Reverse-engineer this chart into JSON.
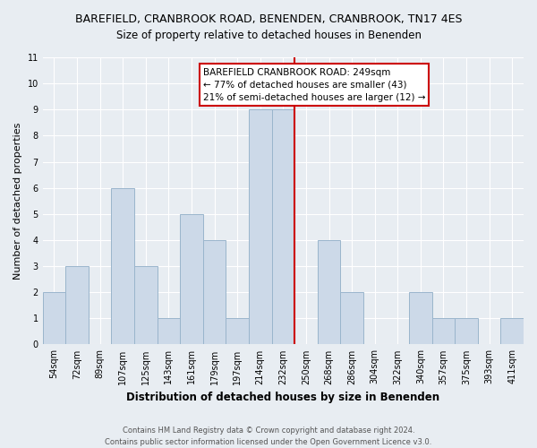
{
  "title": "BAREFIELD, CRANBROOK ROAD, BENENDEN, CRANBROOK, TN17 4ES",
  "subtitle": "Size of property relative to detached houses in Benenden",
  "xlabel": "Distribution of detached houses by size in Benenden",
  "ylabel": "Number of detached properties",
  "footer_line1": "Contains HM Land Registry data © Crown copyright and database right 2024.",
  "footer_line2": "Contains public sector information licensed under the Open Government Licence v3.0.",
  "bar_labels": [
    "54sqm",
    "72sqm",
    "89sqm",
    "107sqm",
    "125sqm",
    "143sqm",
    "161sqm",
    "179sqm",
    "197sqm",
    "214sqm",
    "232sqm",
    "250sqm",
    "268sqm",
    "286sqm",
    "304sqm",
    "322sqm",
    "340sqm",
    "357sqm",
    "375sqm",
    "393sqm",
    "411sqm"
  ],
  "bar_values": [
    2,
    3,
    0,
    6,
    3,
    1,
    5,
    4,
    1,
    9,
    9,
    0,
    4,
    2,
    0,
    0,
    2,
    1,
    1,
    0,
    1
  ],
  "bar_color": "#ccd9e8",
  "bar_edge_color": "#9ab5cc",
  "reference_line_index": 10.5,
  "reference_line_color": "#cc0000",
  "ylim": [
    0,
    11
  ],
  "yticks": [
    0,
    1,
    2,
    3,
    4,
    5,
    6,
    7,
    8,
    9,
    10,
    11
  ],
  "annotation_title": "BAREFIELD CRANBROOK ROAD: 249sqm",
  "annotation_line2": "← 77% of detached houses are smaller (43)",
  "annotation_line3": "21% of semi-detached houses are larger (12) →",
  "annotation_box_facecolor": "#ffffff",
  "annotation_box_edgecolor": "#cc0000",
  "bg_color": "#e8edf2",
  "grid_color": "#ffffff",
  "title_fontsize": 9,
  "subtitle_fontsize": 8.5,
  "ylabel_fontsize": 8,
  "xlabel_fontsize": 8.5,
  "tick_fontsize": 7,
  "annotation_fontsize": 7.5,
  "footer_fontsize": 6
}
